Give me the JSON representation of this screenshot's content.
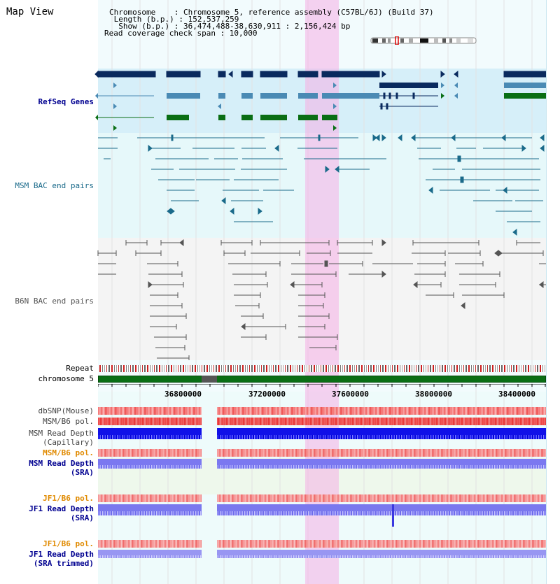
{
  "view_title": "Map View",
  "info": {
    "chromosome": "Chromosome    : Chromosome 5, reference assembly (C57BL/6J) (Build 37)",
    "length": " Length (b.p.) : 152,537,259",
    "show": "  Show (b.p.) : 36,474,488-38,630,911 : 2,156,424 bp",
    "coverage": "Read coverage check span : 10,000"
  },
  "tracks": {
    "refseq": "RefSeq Genes",
    "msm_bac": "MSM BAC end pairs",
    "b6n_bac": "B6N BAC end pairs",
    "repeat": "Repeat",
    "chromosome": "chromosome 5",
    "dbsnp": "dbSNP(Mouse)",
    "msm_b6_pol": "MSM/B6 pol.",
    "msm_read_depth_cap_1": "MSM Read Depth",
    "msm_read_depth_cap_2": "(Capillary)",
    "msm_b6_pol_2": "MSM/B6 pol.",
    "msm_read_depth_sra_1": "MSM Read Depth",
    "msm_read_depth_sra_2": "(SRA)",
    "jf1_b6_pol": "JF1/B6 pol.",
    "jf1_read_depth_sra_1": "JF1 Read Depth",
    "jf1_read_depth_sra_2": "(SRA)",
    "jf1_b6_pol_2": "JF1/B6 pol.",
    "jf1_read_depth_trim_1": "JF1 Read Depth",
    "jf1_read_depth_trim_2": "(SRA trimmed)"
  },
  "axis_ticks": [
    "36800000",
    "37200000",
    "37600000",
    "38000000",
    "38400000"
  ],
  "colors": {
    "navy": "#0a2a5e",
    "steel": "#4a8ab4",
    "green": "#0a6e14",
    "teal": "#1a6a8a",
    "grey": "#555555",
    "orange": "#e08a00",
    "blue_label": "#000090",
    "highlight": "#f7ccf0",
    "gene_bg": "#d4eef8",
    "bac_bg": "#e6f7fa"
  }
}
